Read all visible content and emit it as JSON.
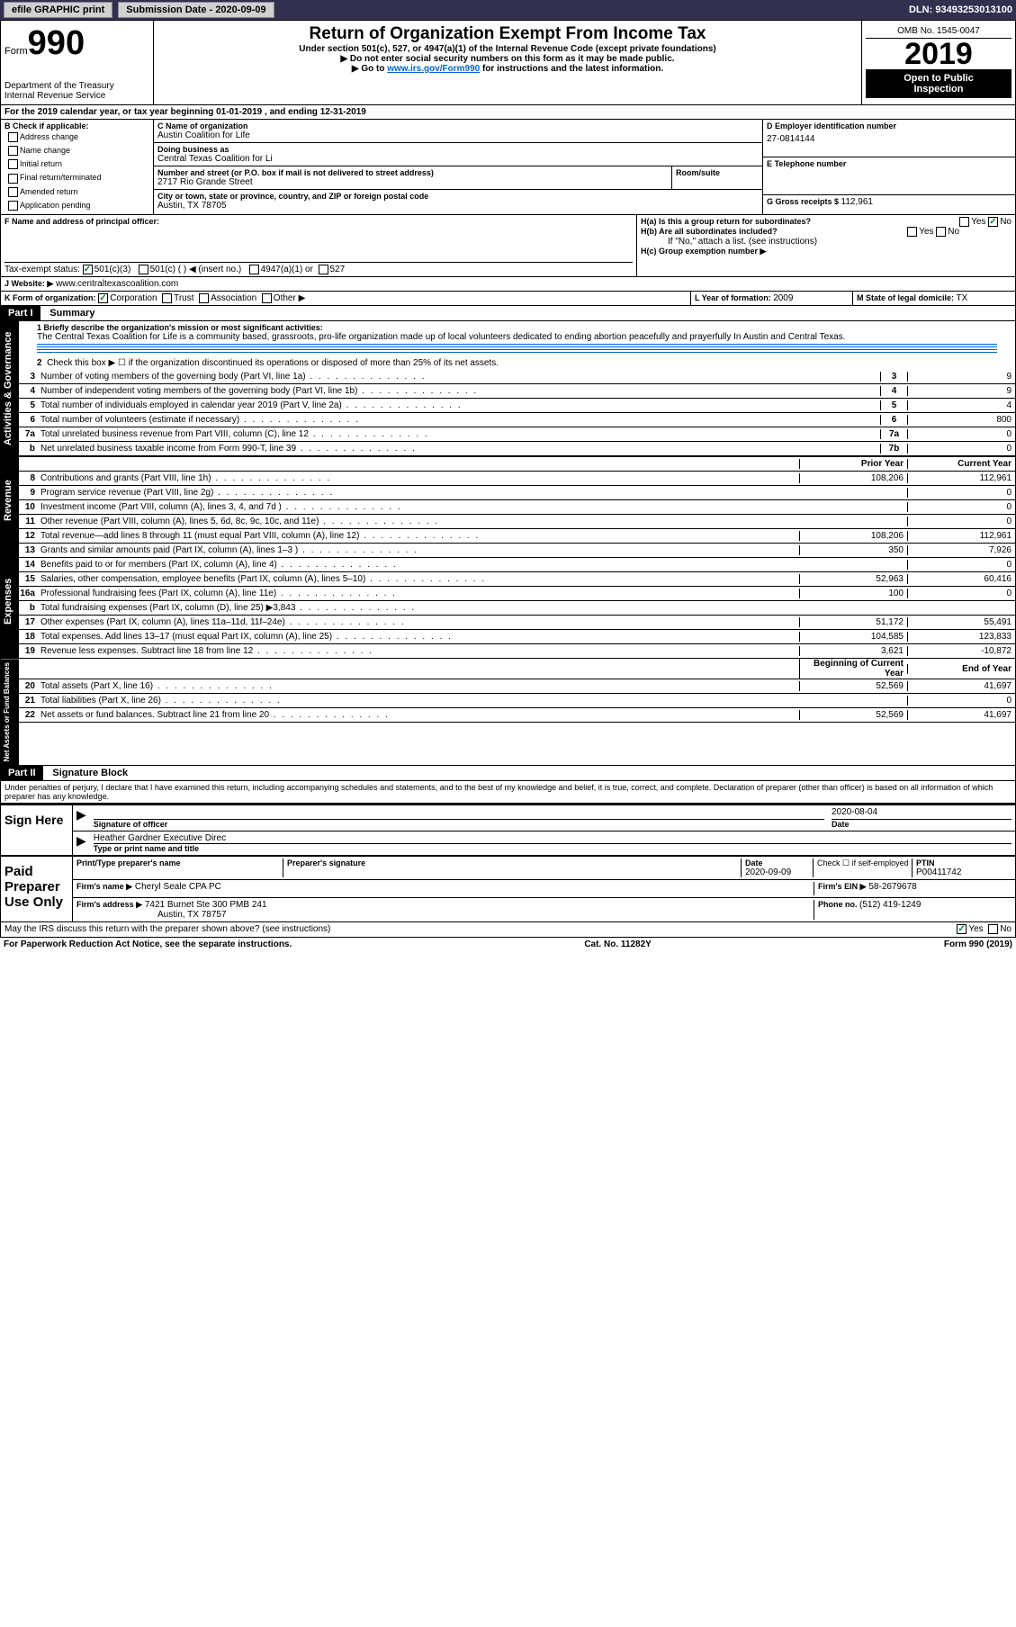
{
  "topbar": {
    "efile": "efile GRAPHIC print",
    "submission_label": "Submission Date - 2020-09-09",
    "dln": "DLN: 93493253013100"
  },
  "header": {
    "form_label": "Form",
    "form_number": "990",
    "dept": "Department of the Treasury",
    "irs": "Internal Revenue Service",
    "title": "Return of Organization Exempt From Income Tax",
    "subtitle1": "Under section 501(c), 527, or 4947(a)(1) of the Internal Revenue Code (except private foundations)",
    "subtitle2": "▶ Do not enter social security numbers on this form as it may be made public.",
    "subtitle3_pre": "▶ Go to ",
    "subtitle3_link": "www.irs.gov/Form990",
    "subtitle3_post": " for instructions and the latest information.",
    "omb": "OMB No. 1545-0047",
    "year": "2019",
    "inspect1": "Open to Public",
    "inspect2": "Inspection"
  },
  "period": {
    "text": "For the 2019 calendar year, or tax year beginning 01-01-2019    , and ending 12-31-2019"
  },
  "boxB": {
    "label": "B Check if applicable:",
    "items": [
      "Address change",
      "Name change",
      "Initial return",
      "Final return/terminated",
      "Amended return",
      "Application pending"
    ]
  },
  "boxC": {
    "name_label": "C Name of organization",
    "name": "Austin Coalition for Life",
    "dba_label": "Doing business as",
    "dba": "Central Texas Coalition for Li",
    "addr_label": "Number and street (or P.O. box if mail is not delivered to street address)",
    "room_label": "Room/suite",
    "addr": "2717 Rio Grande Street",
    "city_label": "City or town, state or province, country, and ZIP or foreign postal code",
    "city": "Austin, TX  78705"
  },
  "boxD": {
    "label": "D Employer identification number",
    "value": "27-0814144"
  },
  "boxE": {
    "label": "E Telephone number",
    "value": ""
  },
  "boxG": {
    "label": "G Gross receipts $ ",
    "value": "112,961"
  },
  "boxF": {
    "label": "F  Name and address of principal officer:",
    "value": ""
  },
  "boxH": {
    "a_label": "H(a)  Is this a group return for subordinates?",
    "b_label": "H(b)  Are all subordinates included?",
    "b_note": "If \"No,\" attach a list. (see instructions)",
    "c_label": "H(c)  Group exemption number ▶",
    "yes": "Yes",
    "no": "No"
  },
  "tax_status": {
    "label": "Tax-exempt status:",
    "opt1": "501(c)(3)",
    "opt2": "501(c) (   ) ◀ (insert no.)",
    "opt3": "4947(a)(1) or",
    "opt4": "527"
  },
  "boxJ": {
    "label": "J   Website: ▶",
    "value": "www.centraltexascoalition.com"
  },
  "boxK": {
    "label": "K Form of organization:",
    "corp": "Corporation",
    "trust": "Trust",
    "assoc": "Association",
    "other": "Other ▶"
  },
  "boxL": {
    "label": "L Year of formation: ",
    "value": "2009"
  },
  "boxM": {
    "label": "M State of legal domicile: ",
    "value": "TX"
  },
  "part1": {
    "hdr": "Part I",
    "title": "Summary",
    "line1_label": "1  Briefly describe the organization's mission or most significant activities:",
    "line1_text": "The Central Texas Coalition for Life is a community based, grassroots, pro-life organization made up of local volunteers dedicated to ending abortion peacefully and prayerfully In Austin and Central Texas.",
    "line2": "Check this box ▶ ☐  if the organization discontinued its operations or disposed of more than 25% of its net assets.",
    "sidebar_ag": "Activities & Governance",
    "sidebar_rev": "Revenue",
    "sidebar_exp": "Expenses",
    "sidebar_net": "Net Assets or Fund Balances",
    "col_prior": "Prior Year",
    "col_current": "Current Year",
    "col_begin": "Beginning of Current Year",
    "col_end": "End of Year",
    "lines_ag": [
      {
        "n": "3",
        "d": "Number of voting members of the governing body (Part VI, line 1a)",
        "box": "3",
        "v": "9"
      },
      {
        "n": "4",
        "d": "Number of independent voting members of the governing body (Part VI, line 1b)",
        "box": "4",
        "v": "9"
      },
      {
        "n": "5",
        "d": "Total number of individuals employed in calendar year 2019 (Part V, line 2a)",
        "box": "5",
        "v": "4"
      },
      {
        "n": "6",
        "d": "Total number of volunteers (estimate if necessary)",
        "box": "6",
        "v": "800"
      },
      {
        "n": "7a",
        "d": "Total unrelated business revenue from Part VIII, column (C), line 12",
        "box": "7a",
        "v": "0"
      },
      {
        "n": "b",
        "d": "Net unrelated business taxable income from Form 990-T, line 39",
        "box": "7b",
        "v": "0"
      }
    ],
    "lines_rev": [
      {
        "n": "8",
        "d": "Contributions and grants (Part VIII, line 1h)",
        "p": "108,206",
        "c": "112,961"
      },
      {
        "n": "9",
        "d": "Program service revenue (Part VIII, line 2g)",
        "p": "",
        "c": "0"
      },
      {
        "n": "10",
        "d": "Investment income (Part VIII, column (A), lines 3, 4, and 7d )",
        "p": "",
        "c": "0"
      },
      {
        "n": "11",
        "d": "Other revenue (Part VIII, column (A), lines 5, 6d, 8c, 9c, 10c, and 11e)",
        "p": "",
        "c": "0"
      },
      {
        "n": "12",
        "d": "Total revenue—add lines 8 through 11 (must equal Part VIII, column (A), line 12)",
        "p": "108,206",
        "c": "112,961"
      }
    ],
    "lines_exp": [
      {
        "n": "13",
        "d": "Grants and similar amounts paid (Part IX, column (A), lines 1–3 )",
        "p": "350",
        "c": "7,926"
      },
      {
        "n": "14",
        "d": "Benefits paid to or for members (Part IX, column (A), line 4)",
        "p": "",
        "c": "0"
      },
      {
        "n": "15",
        "d": "Salaries, other compensation, employee benefits (Part IX, column (A), lines 5–10)",
        "p": "52,963",
        "c": "60,416"
      },
      {
        "n": "16a",
        "d": "Professional fundraising fees (Part IX, column (A), line 11e)",
        "p": "100",
        "c": "0"
      },
      {
        "n": "b",
        "d": "Total fundraising expenses (Part IX, column (D), line 25) ▶3,843",
        "p": "GRAY",
        "c": "GRAY"
      },
      {
        "n": "17",
        "d": "Other expenses (Part IX, column (A), lines 11a–11d, 11f–24e)",
        "p": "51,172",
        "c": "55,491"
      },
      {
        "n": "18",
        "d": "Total expenses. Add lines 13–17 (must equal Part IX, column (A), line 25)",
        "p": "104,585",
        "c": "123,833"
      },
      {
        "n": "19",
        "d": "Revenue less expenses. Subtract line 18 from line 12",
        "p": "3,621",
        "c": "-10,872"
      }
    ],
    "lines_net": [
      {
        "n": "20",
        "d": "Total assets (Part X, line 16)",
        "p": "52,569",
        "c": "41,697"
      },
      {
        "n": "21",
        "d": "Total liabilities (Part X, line 26)",
        "p": "",
        "c": "0"
      },
      {
        "n": "22",
        "d": "Net assets or fund balances. Subtract line 21 from line 20",
        "p": "52,569",
        "c": "41,697"
      }
    ]
  },
  "part2": {
    "hdr": "Part II",
    "title": "Signature Block",
    "penalties": "Under penalties of perjury, I declare that I have examined this return, including accompanying schedules and statements, and to the best of my knowledge and belief, it is true, correct, and complete. Declaration of preparer (other than officer) is based on all information of which preparer has any knowledge."
  },
  "sign": {
    "here": "Sign Here",
    "sig_officer": "Signature of officer",
    "date_label": "Date",
    "date": "2020-08-04",
    "name_title": "Heather Gardner  Executive Direc",
    "name_title_label": "Type or print name and title"
  },
  "preparer": {
    "label": "Paid Preparer Use Only",
    "print_label": "Print/Type preparer's name",
    "sig_label": "Preparer's signature",
    "date_label": "Date",
    "date": "2020-09-09",
    "check_label": "Check ☐ if self-employed",
    "ptin_label": "PTIN",
    "ptin": "P00411742",
    "firm_name_label": "Firm's name      ▶",
    "firm_name": "Cheryl Seale CPA PC",
    "firm_ein_label": "Firm's EIN ▶",
    "firm_ein": "58-2679678",
    "firm_addr_label": "Firm's address ▶",
    "firm_addr1": "7421 Burnet Ste 300 PMB 241",
    "firm_addr2": "Austin, TX  78757",
    "phone_label": "Phone no. ",
    "phone": "(512) 419-1249"
  },
  "discuss": {
    "text": "May the IRS discuss this return with the preparer shown above? (see instructions)",
    "yes": "Yes",
    "no": "No"
  },
  "footer": {
    "left": "For Paperwork Reduction Act Notice, see the separate instructions.",
    "center": "Cat. No. 11282Y",
    "right": "Form 990 (2019)"
  }
}
